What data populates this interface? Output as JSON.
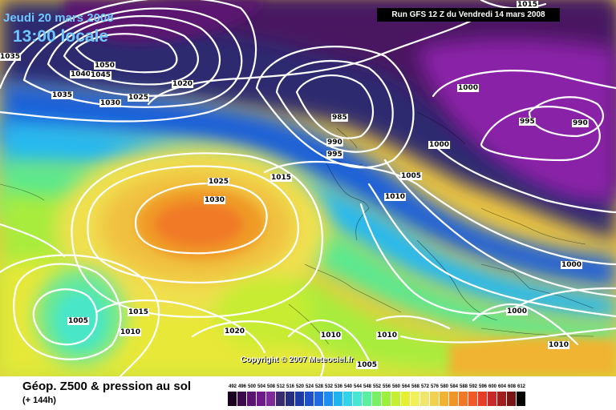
{
  "header": {
    "date_line": "Jeudi 20 mars 2008",
    "time_line": "13:00 locale",
    "run_info": "Run GFS 12 Z du Vendredi 14 mars 2008"
  },
  "copyright": "Copyright © 2007 Meteociel.fr",
  "footer": {
    "title": "Géop. Z500 & pression au sol",
    "subtitle": "(+ 144h)"
  },
  "legend": {
    "labels": [
      "492",
      "496",
      "500",
      "504",
      "508",
      "512",
      "516",
      "520",
      "524",
      "528",
      "532",
      "536",
      "540",
      "544",
      "548",
      "552",
      "556",
      "560",
      "564",
      "568",
      "572",
      "576",
      "580",
      "584",
      "588",
      "592",
      "596",
      "600",
      "604",
      "608",
      "612"
    ],
    "colors": [
      "#1a0020",
      "#3b0a4a",
      "#5a1370",
      "#6e1a8a",
      "#7f2a9a",
      "#3a2a6e",
      "#262e7e",
      "#1e3aa4",
      "#1e50c8",
      "#1e6ae0",
      "#1e8cf0",
      "#1eb4f0",
      "#32d2ea",
      "#46e6d2",
      "#5af0a0",
      "#78f064",
      "#9cf03c",
      "#c4f032",
      "#e6f032",
      "#f0f05a",
      "#f0e66e",
      "#f0d250",
      "#f0b432",
      "#f09628",
      "#f07828",
      "#f05a28",
      "#e63c28",
      "#c82828",
      "#a01e1e",
      "#781414",
      "#000000"
    ]
  },
  "isobars": {
    "values": [
      "1035",
      "1050",
      "1040",
      "1045",
      "1035",
      "1030",
      "1025",
      "1020",
      "985",
      "990",
      "995",
      "1000",
      "1015",
      "1025",
      "1030",
      "1005",
      "1010",
      "1000",
      "995",
      "990",
      "1015",
      "1000",
      "1005",
      "1010",
      "1015",
      "1020",
      "1010",
      "1010",
      "1005",
      "1000",
      "1010"
    ]
  }
}
